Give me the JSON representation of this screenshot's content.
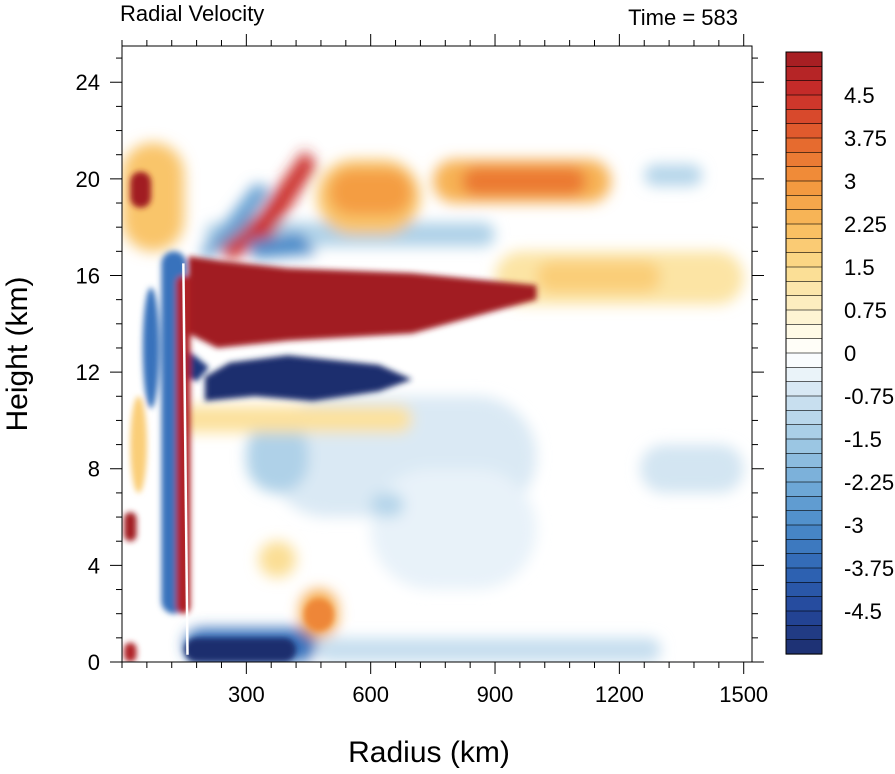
{
  "chart_data": {
    "type": "heatmap",
    "title_left": "Radial Velocity",
    "title_right": "Time = 583",
    "xlabel": "Radius (km)",
    "ylabel": "Height (km)",
    "xlim": [
      0,
      1520
    ],
    "ylim": [
      0,
      25.5
    ],
    "x_ticks": [
      300,
      600,
      900,
      1200,
      1500
    ],
    "y_ticks": [
      0,
      4,
      8,
      12,
      16,
      20,
      24
    ],
    "colorbar": {
      "range": [
        -5.25,
        5.25
      ],
      "step": 0.25,
      "labels": [
        "4.5",
        "3.75",
        "3",
        "2.25",
        "1.5",
        "0.75",
        "0",
        "-0.75",
        "-1.5",
        "-2.25",
        "-3",
        "-3.75",
        "-4.5"
      ],
      "label_values": [
        4.5,
        3.75,
        3,
        2.25,
        1.5,
        0.75,
        0,
        -0.75,
        -1.5,
        -2.25,
        -3,
        -3.75,
        -4.5
      ]
    },
    "features": [
      {
        "name": "upper outflow jet",
        "r": [
          150,
          1000
        ],
        "z": [
          13.2,
          16.5
        ],
        "value": 6
      },
      {
        "name": "upper outflow tail",
        "r": [
          900,
          1500
        ],
        "z": [
          15.0,
          16.8
        ],
        "value": 1.5
      },
      {
        "name": "inflow below outflow",
        "r": [
          200,
          700
        ],
        "z": [
          10.7,
          12.8
        ],
        "value": -5.5
      },
      {
        "name": "upper level positive band",
        "r": [
          480,
          720
        ],
        "z": [
          18.0,
          20.6
        ],
        "value": 2.5
      },
      {
        "name": "upper level positive band 2",
        "r": [
          750,
          1150
        ],
        "z": [
          19.0,
          20.6
        ],
        "value": 3.5
      },
      {
        "name": "boundary layer inflow",
        "r": [
          150,
          450
        ],
        "z": [
          0,
          1.2
        ],
        "value": -5.5
      },
      {
        "name": "low level outflow",
        "r": [
          430,
          500
        ],
        "z": [
          1.2,
          3.0
        ],
        "value": 3
      }
    ]
  }
}
